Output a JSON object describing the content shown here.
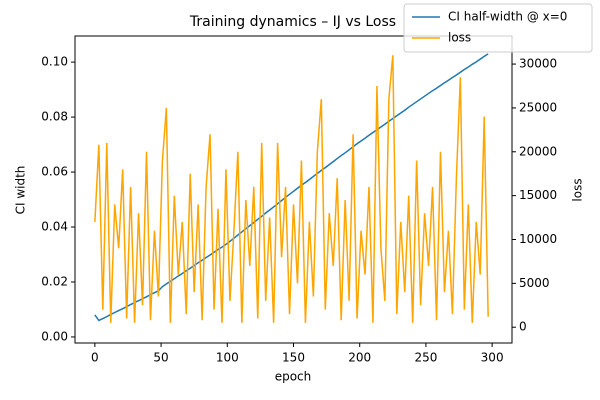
{
  "chart_data": {
    "type": "line",
    "title": "Training dynamics – IJ vs Loss",
    "x_label": "epoch",
    "y_label": "CI width",
    "y2_label": "loss",
    "x": [
      0,
      3,
      6,
      9,
      12,
      15,
      18,
      21,
      24,
      27,
      30,
      33,
      36,
      39,
      42,
      45,
      48,
      51,
      54,
      57,
      60,
      63,
      66,
      69,
      72,
      75,
      78,
      81,
      84,
      87,
      90,
      93,
      96,
      99,
      102,
      105,
      108,
      111,
      114,
      117,
      120,
      123,
      126,
      129,
      132,
      135,
      138,
      141,
      144,
      147,
      150,
      153,
      156,
      159,
      162,
      165,
      168,
      171,
      174,
      177,
      180,
      183,
      186,
      189,
      192,
      195,
      198,
      201,
      204,
      207,
      210,
      213,
      216,
      219,
      222,
      225,
      228,
      231,
      234,
      237,
      240,
      243,
      246,
      249,
      252,
      255,
      258,
      261,
      264,
      267,
      270,
      273,
      276,
      279,
      282,
      285,
      288,
      291,
      294,
      297
    ],
    "series": [
      {
        "name": "CI half-width @ x=0",
        "color": "#1f77b4",
        "values": [
          0.008,
          0.006,
          0.0067,
          0.0074,
          0.0082,
          0.0089,
          0.0096,
          0.0103,
          0.011,
          0.0118,
          0.0125,
          0.0132,
          0.0139,
          0.0146,
          0.0154,
          0.0161,
          0.0168,
          0.0183,
          0.0193,
          0.0202,
          0.0212,
          0.0222,
          0.0231,
          0.0241,
          0.025,
          0.026,
          0.027,
          0.0279,
          0.0289,
          0.0298,
          0.0308,
          0.0318,
          0.0327,
          0.0337,
          0.0348,
          0.0359,
          0.0371,
          0.0382,
          0.0394,
          0.0405,
          0.0416,
          0.0428,
          0.0439,
          0.0451,
          0.0462,
          0.0473,
          0.0485,
          0.0496,
          0.0508,
          0.0519,
          0.053,
          0.0541,
          0.0552,
          0.0562,
          0.0573,
          0.0584,
          0.0595,
          0.0606,
          0.0616,
          0.0627,
          0.0638,
          0.0649,
          0.066,
          0.067,
          0.0681,
          0.0692,
          0.0703,
          0.0713,
          0.0723,
          0.0734,
          0.0744,
          0.0754,
          0.0764,
          0.0774,
          0.0785,
          0.0795,
          0.0805,
          0.0815,
          0.0825,
          0.0836,
          0.0846,
          0.0856,
          0.0866,
          0.0876,
          0.0886,
          0.0896,
          0.0905,
          0.0915,
          0.0925,
          0.0934,
          0.0944,
          0.0953,
          0.0963,
          0.0973,
          0.0982,
          0.0992,
          0.1001,
          0.1011,
          0.1021,
          0.103
        ]
      },
      {
        "name": "loss",
        "color": "#ffa500",
        "axis": "y2",
        "values": [
          12000,
          20800,
          2000,
          21000,
          500,
          14000,
          9000,
          18000,
          1000,
          16000,
          500,
          13000,
          2500,
          20000,
          800,
          11000,
          3500,
          19000,
          25000,
          500,
          15000,
          6000,
          12000,
          1500,
          17500,
          4000,
          14000,
          800,
          16000,
          22000,
          2000,
          13500,
          500,
          18000,
          3000,
          11000,
          20000,
          500,
          14500,
          7000,
          16000,
          1000,
          21000,
          3000,
          12500,
          500,
          21000,
          8000,
          16000,
          1500,
          14000,
          5000,
          19000,
          500,
          12000,
          3500,
          20000,
          26000,
          2000,
          13000,
          7000,
          17000,
          800,
          14500,
          3000,
          22000,
          1000,
          11000,
          6000,
          16000,
          500,
          27500,
          9000,
          3000,
          26000,
          31000,
          1500,
          12000,
          4000,
          15000,
          500,
          19000,
          2500,
          13000,
          7000,
          16000,
          800,
          20000,
          4000,
          11000,
          1500,
          17000,
          28500,
          2000,
          14000,
          500,
          12000,
          6000,
          24000,
          1200
        ]
      }
    ],
    "xlim": [
      -15,
      315
    ],
    "xticks": [
      0,
      50,
      100,
      150,
      200,
      250,
      300
    ],
    "ylim": [
      -0.0022,
      0.1095
    ],
    "yticks": [
      {
        "value": 0,
        "label": "0.00"
      },
      0.02,
      0.04,
      0.06,
      0.08,
      {
        "value": 0.1,
        "label": "0.10"
      }
    ],
    "y2lim": [
      -1800,
      33200
    ],
    "y2ticks": [
      0,
      5000,
      10000,
      15000,
      20000,
      25000,
      30000
    ],
    "grid": false,
    "legend": "upper right"
  }
}
